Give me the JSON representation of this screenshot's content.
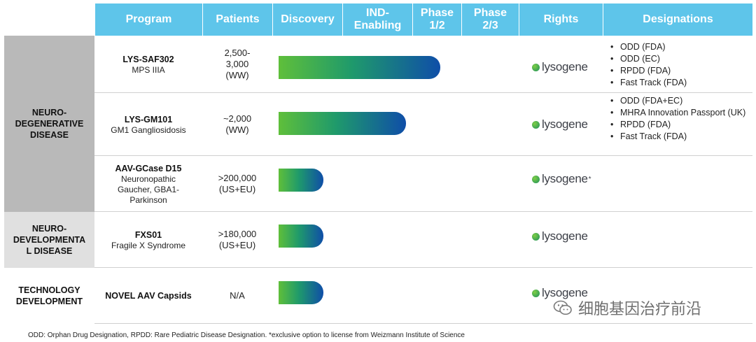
{
  "header": {
    "program": "Program",
    "patients": "Patients",
    "discovery": "Discovery",
    "ind": "IND-\nEnabling",
    "phase12": "Phase\n1/2",
    "phase23": "Phase\n2/3",
    "rights": "Rights",
    "designations": "Designations"
  },
  "categories": {
    "neuro_degen": "NEURO-\nDEGENERATIVE\nDISEASE",
    "neuro_dev": "NEURO-\nDEVELOPMENTA\nL DISEASE",
    "tech": "TECHNOLOGY\nDEVELOPMENT"
  },
  "rows": [
    {
      "program": "LYS-SAF302",
      "sub": "MPS IIIA",
      "patients": "2,500-\n3,000\n(WW)",
      "rights": "lysogene",
      "rights_note": "",
      "progress_phase": 2.7,
      "designations": [
        "ODD (FDA)",
        "ODD (EC)",
        "RPDD (FDA)",
        "Fast Track (FDA)"
      ]
    },
    {
      "program": "LYS-GM101",
      "sub": "GM1 Gangliosidosis",
      "patients": "~2,000\n(WW)",
      "rights": "lysogene",
      "rights_note": "",
      "progress_phase": 2.0,
      "designations": [
        "ODD (FDA+EC)",
        "MHRA Innovation Passport (UK)",
        "RPDD (FDA)",
        "Fast Track (FDA)"
      ]
    },
    {
      "program": "AAV-GCase D15",
      "sub": "Neuronopathic Gaucher, GBA1-Parkinson",
      "patients": ">200,000\n(US+EU)",
      "rights": "lysogene",
      "rights_note": "*",
      "progress_phase": 0.8,
      "designations": []
    },
    {
      "program": "FXS01",
      "sub": "Fragile X Syndrome",
      "patients": ">180,000\n(US+EU)",
      "rights": "lysogene",
      "rights_note": "",
      "progress_phase": 0.8,
      "designations": []
    },
    {
      "program": "NOVEL AAV Capsids",
      "sub": "",
      "patients": "N/A",
      "rights": "lysogene",
      "rights_note": "",
      "progress_phase": 0.8,
      "designations": []
    }
  ],
  "footnote": "ODD: Orphan Drug Designation, RPDD: Rare Pediatric Disease Designation. *exclusive option to license from Weizmann Institute of Science",
  "watermark": "细胞基因治疗前沿",
  "colors": {
    "header": "#5ec5ea",
    "category_dark": "#b9b9b9",
    "category_light": "#e0e0e0",
    "bar_start": "#5fbf3a",
    "bar_end": "#0f4ea8"
  }
}
